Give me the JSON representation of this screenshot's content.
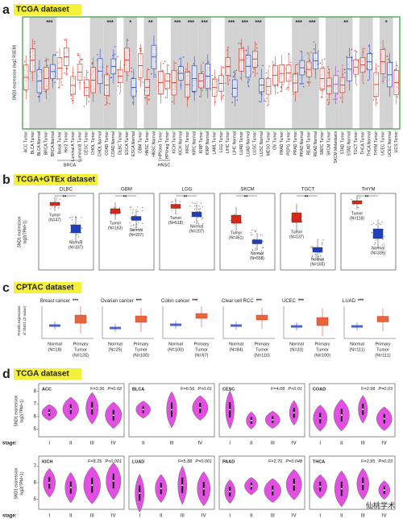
{
  "colors": {
    "tumor": "#d62718",
    "normal": "#1f3fbf",
    "metastasis": "#a23fc4",
    "violin": "#e24fe2",
    "highlight": "#f5f03a",
    "title_text": "#2b3f8f",
    "frame_a": "#3a9a3a"
  },
  "panels": {
    "a": {
      "letter": "a",
      "title": "TCGA dataset",
      "ylabel": "SND1 expression (log2 RSEM)",
      "categories": [
        "ACC Tumor",
        "BLCA Tumor",
        "BLCA Normal",
        "BRCA Tumor",
        "BRCA Normal",
        "Basal Tumor",
        "Her2 Tumor",
        "Luminal A Tumor",
        "Luminal B Tumor",
        "CESC Tumor",
        "CHOL Tumor",
        "CHOL Normal",
        "COAD Tumor",
        "COAD Normal",
        "DLBC Tumor",
        "ESCA Tumor",
        "ESCA Normal",
        "GBM Tumor",
        "HNSC Tumor",
        "HNSC Normal",
        "HPVpos Tumor",
        "HPVneg Tumor",
        "KICH Tumor",
        "KICH Normal",
        "KIRC Tumor",
        "KIRC Normal",
        "KIRP Tumor",
        "KIRP Normal",
        "LAML Tumor",
        "LGG Tumor",
        "LIHC Tumor",
        "LIHC Normal",
        "LUAD Tumor",
        "LUAD Normal",
        "LUSC Tumor",
        "LUSC Normal",
        "MESO Tumor",
        "OV Tumor",
        "PAAD Tumor",
        "PCPG Tumor",
        "PRAD Tumor",
        "PRAD Normal",
        "READ Tumor",
        "READ Normal",
        "SARC Tumor",
        "SKCM Tumor",
        "SKCM Metastasis",
        "STAD Tumor",
        "STAD Normal",
        "TGCT Tumor",
        "THCA Tumor",
        "THCA Normal",
        "THYM Tumor",
        "UCEC Tumor",
        "UCEC Normal",
        "UCS Tumor"
      ],
      "label_colors": [
        "#d62718",
        "#d62718",
        "#1f3fbf",
        "#d62718",
        "#1f3fbf",
        "#d62718",
        "#d62718",
        "#d62718",
        "#d62718",
        "#d62718",
        "#d62718",
        "#1f3fbf",
        "#d62718",
        "#1f3fbf",
        "#d62718",
        "#d62718",
        "#1f3fbf",
        "#d62718",
        "#d62718",
        "#1f3fbf",
        "#d62718",
        "#d62718",
        "#d62718",
        "#1f3fbf",
        "#d62718",
        "#1f3fbf",
        "#d62718",
        "#1f3fbf",
        "#d62718",
        "#d62718",
        "#d62718",
        "#1f3fbf",
        "#d62718",
        "#1f3fbf",
        "#d62718",
        "#1f3fbf",
        "#d62718",
        "#d62718",
        "#d62718",
        "#d62718",
        "#d62718",
        "#1f3fbf",
        "#d62718",
        "#1f3fbf",
        "#d62718",
        "#d62718",
        "#a23fc4",
        "#d62718",
        "#1f3fbf",
        "#d62718",
        "#d62718",
        "#1f3fbf",
        "#d62718",
        "#d62718",
        "#1f3fbf",
        "#d62718"
      ],
      "sig": [
        null,
        null,
        null,
        "***",
        null,
        null,
        null,
        null,
        null,
        null,
        null,
        null,
        "***",
        null,
        null,
        "*",
        null,
        null,
        "**",
        null,
        null,
        null,
        "***",
        null,
        "***",
        null,
        "***",
        null,
        null,
        null,
        "***",
        null,
        "***",
        null,
        "***",
        null,
        null,
        null,
        null,
        null,
        "***",
        null,
        "***",
        null,
        null,
        null,
        null,
        "**",
        null,
        null,
        null,
        null,
        null,
        "*",
        null,
        null
      ],
      "groups": [
        "BRCA",
        "HNSC"
      ]
    },
    "b": {
      "letter": "b",
      "title": "TCGA+GTEx dataset",
      "ylabel": [
        "SND1 expression",
        "log2(TPM+1)"
      ],
      "plots": [
        {
          "name": "DLBC",
          "sig": "**",
          "tumor": "Tumor",
          "tumor_n": "(N=47)",
          "normal": "Normal",
          "normal_n": "(N=337)"
        },
        {
          "name": "GBM",
          "sig": "**",
          "tumor": "Tumor",
          "tumor_n": "(N=163)",
          "normal": "Normal",
          "normal_n": "(N=207)"
        },
        {
          "name": "LGG",
          "sig": "**",
          "tumor": "Tumor",
          "tumor_n": "(N=518)",
          "normal": "Normal",
          "normal_n": "(N=207)"
        },
        {
          "name": "SKCM",
          "sig": "**",
          "tumor": "Tumor",
          "tumor_n": "(N=461)",
          "normal": "Normal",
          "normal_n": "(N=558)"
        },
        {
          "name": "TGCT",
          "sig": "**",
          "tumor": "Tumor",
          "tumor_n": "(N=137)",
          "normal": "Normal",
          "normal_n": "(N=165)"
        },
        {
          "name": "THYM",
          "sig": "**",
          "tumor": "Tumor",
          "tumor_n": "(N=118)",
          "normal": "Normal",
          "normal_n": "(N=339)"
        }
      ]
    },
    "c": {
      "letter": "c",
      "title": "CPTAC dataset",
      "ylabel": [
        "Protein expression",
        "of SND1 (Z-value)"
      ],
      "plots": [
        {
          "name": "Breast cancer",
          "sig": "***",
          "normal": "Normal",
          "normal_n": "(N=18)",
          "tumor": [
            "Primary",
            "Tumor"
          ],
          "tumor_n": "(N=125)"
        },
        {
          "name": "Ovarian cancer",
          "sig": "***",
          "normal": "Normal",
          "normal_n": "(N=25)",
          "tumor": [
            "Primary",
            "Tumor"
          ],
          "tumor_n": "(N=100)"
        },
        {
          "name": "Colon cancer",
          "sig": "***",
          "normal": "Normal",
          "normal_n": "(N=100)",
          "tumor": [
            "Primary",
            "Tumor"
          ],
          "tumor_n": "(N=97)"
        },
        {
          "name": "Clear cell RCC",
          "sig": "***",
          "normal": "Normal",
          "normal_n": "(N=84)",
          "tumor": [
            "Primary",
            "Tumor"
          ],
          "tumor_n": "(N=110)"
        },
        {
          "name": "UCEC",
          "sig": "***",
          "normal": "Normal",
          "normal_n": "(N=31)",
          "tumor": [
            "Primary",
            "Tumor"
          ],
          "tumor_n": "(N=100)"
        },
        {
          "name": "LUAD",
          "sig": "***",
          "normal": "Normal",
          "normal_n": "(N=111)",
          "tumor": [
            "Primary",
            "Tumor"
          ],
          "tumor_n": "(N=111)"
        }
      ]
    },
    "d": {
      "letter": "d",
      "title": "TCGA dataset",
      "ylabel": [
        "SND1 expression",
        "log2(TPM+1)"
      ],
      "stage_label": "stage:",
      "plots": [
        {
          "name": "ACC",
          "F": "F=3.36",
          "P": "P=0.02",
          "stages": [
            "I",
            "II",
            "III",
            "IV"
          ],
          "ylim": [
            4.4,
            8.6
          ],
          "yticks": [
            5,
            6,
            7,
            8
          ]
        },
        {
          "name": "BLCA",
          "F": "F=6.56",
          "P": "P<0.01",
          "stages": [
            "II",
            "III",
            "IV"
          ]
        },
        {
          "name": "CESC",
          "F": "F=4.08",
          "P": "P<0.01",
          "stages": [
            "I",
            "II",
            "III",
            "IV"
          ]
        },
        {
          "name": "COAD",
          "F": "F=2.98",
          "P": "P=0.03",
          "stages": [
            "I",
            "II",
            "III",
            "IV"
          ]
        },
        {
          "name": "KICH",
          "F": "F=8.25",
          "P": "P<0.001",
          "stages": [
            "I",
            "II",
            "III",
            "IV"
          ],
          "ylim": [
            4.4,
            7.6
          ],
          "yticks": [
            5,
            6,
            7
          ]
        },
        {
          "name": "LUAD",
          "F": "F=5.88",
          "P": "P=0.001",
          "stages": [
            "I",
            "II",
            "III",
            "IV"
          ]
        },
        {
          "name": "PAAD",
          "F": "F=2.70",
          "P": "P=0.048",
          "stages": [
            "I",
            "II",
            "III",
            "IV"
          ]
        },
        {
          "name": "THCA",
          "F": "F=2.95",
          "P": "P=0.03",
          "stages": [
            "I",
            "II",
            "III",
            "IV"
          ]
        }
      ]
    }
  },
  "watermark": "仙桃学术"
}
